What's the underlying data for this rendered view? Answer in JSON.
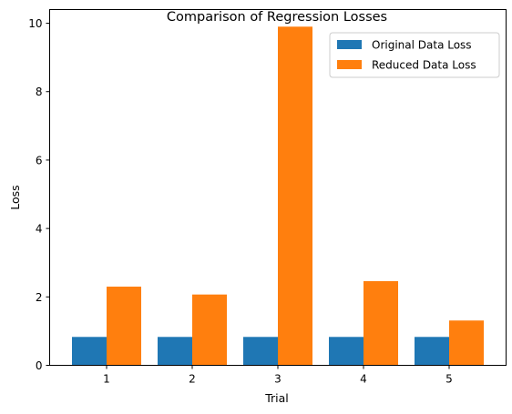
{
  "chart_data": {
    "type": "bar",
    "title": "Comparison of Regression Losses",
    "xlabel": "Trial",
    "ylabel": "Loss",
    "categories": [
      "1",
      "2",
      "3",
      "4",
      "5"
    ],
    "ylim": [
      0,
      10.4
    ],
    "yticks": [
      0,
      2,
      4,
      6,
      8,
      10
    ],
    "grid": false,
    "legend_position": "top-right",
    "series": [
      {
        "name": "Original Data Loss",
        "color": "#1f77b4",
        "values": [
          0.83,
          0.83,
          0.83,
          0.83,
          0.83
        ]
      },
      {
        "name": "Reduced Data Loss",
        "color": "#ff7f0e",
        "values": [
          2.3,
          2.07,
          9.9,
          2.46,
          1.31
        ]
      }
    ]
  }
}
